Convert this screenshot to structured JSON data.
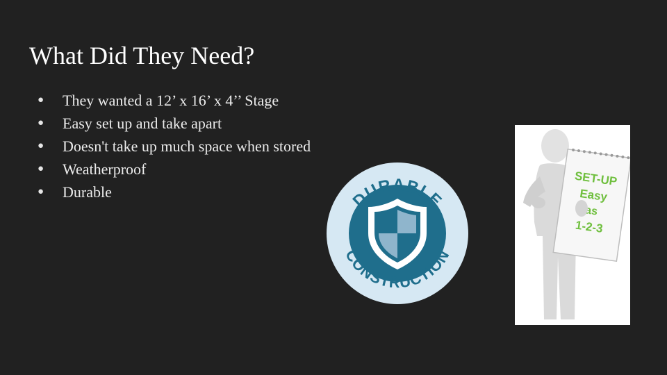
{
  "slide": {
    "title": "What Did They Need?",
    "bullets": [
      "They wanted a 12’ x 16’ x 4’’ Stage",
      "Easy set up and take apart",
      "Doesn't take up much space when stored",
      "Weatherproof",
      "Durable"
    ]
  },
  "badge": {
    "top_text": "DURABLE",
    "bottom_text": "CONSTRUCTION",
    "colors": {
      "ring": "#1f6e8c",
      "outer": "#d6e8f3",
      "shield": "#1f6e8c",
      "shield_light": "#8fb5cc"
    }
  },
  "figure": {
    "sign_lines": [
      "SET-UP",
      "Easy",
      "as",
      "1-2-3"
    ],
    "colors": {
      "sign_text": "#6fbf3e"
    }
  }
}
